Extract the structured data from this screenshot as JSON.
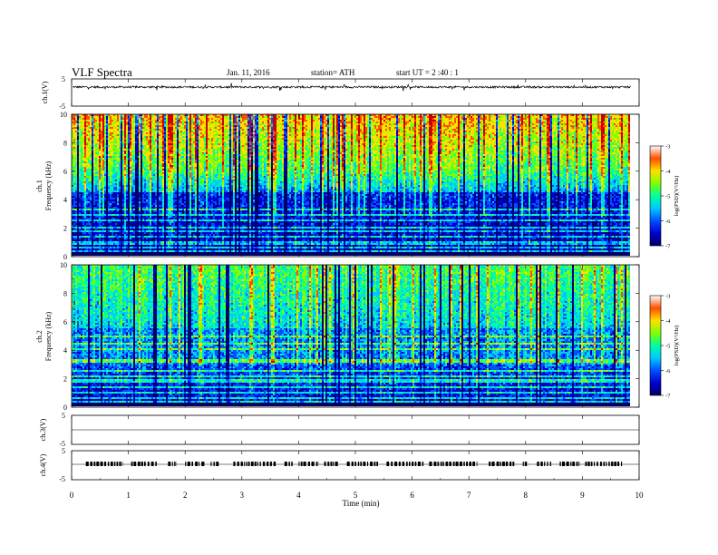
{
  "header": {
    "title": "VLF  Spectra",
    "date": "Jan. 11, 2016",
    "station": "station= ATH",
    "start": "start  UT  =   2  :40 : 1"
  },
  "colors": {
    "colormap": [
      "#000066",
      "#0000d0",
      "#0050ff",
      "#00c8ff",
      "#00ffa0",
      "#80ff00",
      "#ffe000",
      "#ff5000",
      "#cc0000",
      "#ffffff"
    ],
    "trace": "#000000",
    "frame": "#000000"
  },
  "chart_data": [
    {
      "type": "line",
      "name": "ch1-waveform",
      "ylabel": "ch.1(V)",
      "ylim": [
        -5,
        5
      ],
      "yticks": [
        "5",
        "-5"
      ],
      "series_note": "dense noisy trace centered near 2 V",
      "level": 2
    },
    {
      "type": "heatmap",
      "name": "ch1-spectrogram",
      "ylabel_channel": "ch.1",
      "ylabel": "Frequency  (kHz)",
      "ylim": [
        0,
        10
      ],
      "yticks": [
        "0",
        "2",
        "4",
        "6",
        "8",
        "10"
      ],
      "colorbar": {
        "label": "log(PSD)(V²/Hz)",
        "range": [
          -7,
          -3
        ],
        "ticks": [
          "-3",
          "-4",
          "-5",
          "-6",
          "-7"
        ]
      }
    },
    {
      "type": "heatmap",
      "name": "ch2-spectrogram",
      "ylabel_channel": "ch.2",
      "ylabel": "Frequency  (kHz)",
      "ylim": [
        0,
        10
      ],
      "yticks": [
        "0",
        "2",
        "4",
        "6",
        "8",
        "10"
      ],
      "colorbar": {
        "label": "log(PSD)(V²/Hz)",
        "range": [
          -7,
          -3
        ],
        "ticks": [
          "-3",
          "-4",
          "-5",
          "-6",
          "-7"
        ]
      }
    },
    {
      "type": "line",
      "name": "ch3-waveform",
      "ylabel": "ch.3(V)",
      "ylim": [
        -5,
        5
      ],
      "yticks": [
        "5",
        "-5"
      ],
      "level": 0
    },
    {
      "type": "line",
      "name": "ch4-waveform",
      "ylabel": "ch.4(V)",
      "ylim": [
        -5,
        5
      ],
      "yticks": [
        "5",
        "-5"
      ],
      "level": 0,
      "pulse_segments_min": [
        [
          0.25,
          0.9
        ],
        [
          1.05,
          1.5
        ],
        [
          1.7,
          1.85
        ],
        [
          2.0,
          2.35
        ],
        [
          2.45,
          2.6
        ],
        [
          2.85,
          3.6
        ],
        [
          3.75,
          3.9
        ],
        [
          4.0,
          4.35
        ],
        [
          4.45,
          4.7
        ],
        [
          4.85,
          5.4
        ],
        [
          5.55,
          6.2
        ],
        [
          6.3,
          7.15
        ],
        [
          7.35,
          7.8
        ],
        [
          7.95,
          8.05
        ],
        [
          8.2,
          8.45
        ],
        [
          8.6,
          8.95
        ],
        [
          9.05,
          9.7
        ]
      ]
    }
  ],
  "xaxis": {
    "label": "Time  (min)",
    "range": [
      0,
      10
    ],
    "ticks": [
      "0",
      "1",
      "2",
      "3",
      "4",
      "5",
      "6",
      "7",
      "8",
      "9",
      "10"
    ],
    "data_end": 9.85
  }
}
